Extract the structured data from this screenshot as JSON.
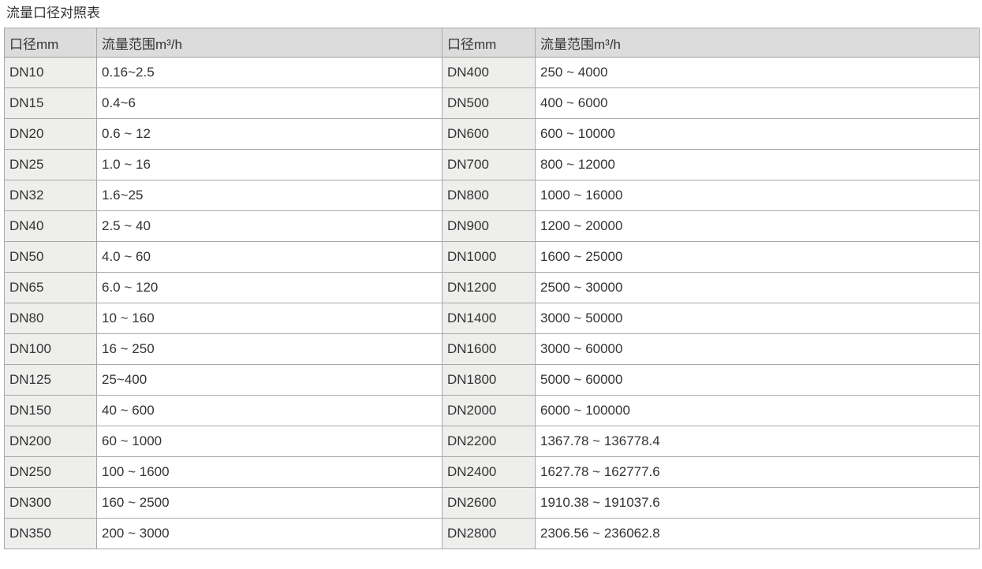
{
  "page": {
    "title": "流量口径对照表"
  },
  "colors": {
    "header_bg": "#dcdcdc",
    "dn_column_bg": "#eeeeec",
    "border": "#a8a8a8",
    "text": "#333333"
  },
  "table": {
    "headers": [
      "口径mm",
      "流量范围m³/h",
      "口径mm",
      "流量范围m³/h"
    ],
    "rows": [
      [
        "DN10",
        "0.16~2.5",
        "DN400",
        "250 ~ 4000"
      ],
      [
        "DN15",
        "0.4~6",
        "DN500",
        "400 ~ 6000"
      ],
      [
        "DN20",
        "0.6 ~ 12",
        "DN600",
        "600 ~ 10000"
      ],
      [
        "DN25",
        "1.0 ~ 16",
        "DN700",
        "800 ~ 12000"
      ],
      [
        "DN32",
        "1.6~25",
        "DN800",
        "1000 ~ 16000"
      ],
      [
        "DN40",
        "2.5 ~ 40",
        "DN900",
        "1200 ~ 20000"
      ],
      [
        "DN50",
        "4.0 ~ 60",
        "DN1000",
        "1600 ~ 25000"
      ],
      [
        "DN65",
        "6.0 ~ 120",
        "DN1200",
        "2500 ~ 30000"
      ],
      [
        "DN80",
        "10 ~ 160",
        "DN1400",
        "3000 ~ 50000"
      ],
      [
        "DN100",
        "16 ~ 250",
        "DN1600",
        "3000 ~ 60000"
      ],
      [
        "DN125",
        "25~400",
        "DN1800",
        "5000 ~ 60000"
      ],
      [
        "DN150",
        "40 ~ 600",
        "DN2000",
        "6000 ~ 100000"
      ],
      [
        "DN200",
        "60 ~ 1000",
        "DN2200",
        "1367.78 ~ 136778.4"
      ],
      [
        "DN250",
        "100 ~ 1600",
        "DN2400",
        "1627.78 ~ 162777.6"
      ],
      [
        "DN300",
        "160 ~ 2500",
        "DN2600",
        "1910.38 ~ 191037.6"
      ],
      [
        "DN350",
        "200 ~ 3000",
        "DN2800",
        "2306.56 ~ 236062.8"
      ]
    ]
  }
}
